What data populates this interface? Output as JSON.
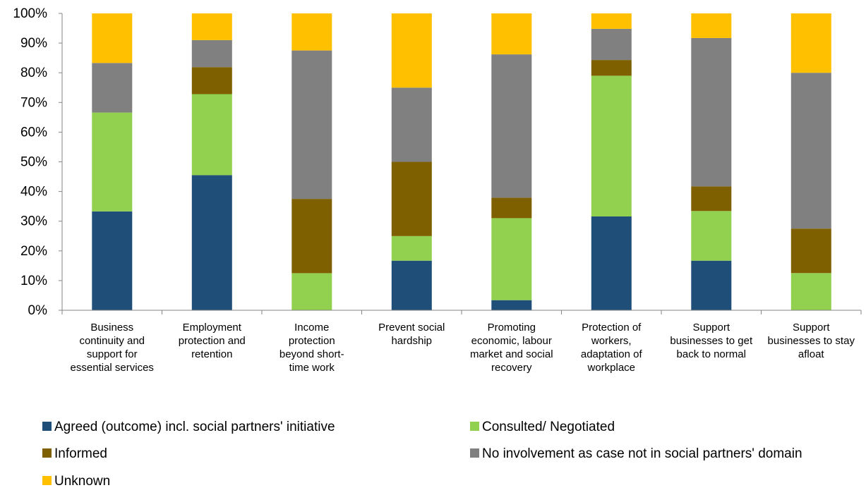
{
  "chart_data": {
    "type": "bar",
    "stacked": true,
    "percent_stacked": true,
    "categories": [
      [
        "Business",
        "continuity and",
        "support for",
        "essential services"
      ],
      [
        "Employment",
        "protection and",
        "retention"
      ],
      [
        "Income",
        "protection",
        "beyond short-",
        "time work"
      ],
      [
        "Prevent social",
        "hardship"
      ],
      [
        "Promoting",
        "economic, labour",
        "market and social",
        "recovery"
      ],
      [
        "Protection of",
        "workers,",
        "adaptation of",
        "workplace"
      ],
      [
        "Support",
        "businesses to get",
        "back to normal"
      ],
      [
        "Support",
        "businesses to stay",
        "afloat"
      ]
    ],
    "series": [
      {
        "name": "Agreed (outcome) incl. social partners' initiative",
        "color": "#1f4e79",
        "values": [
          33.3,
          45.5,
          0,
          16.7,
          3.4,
          31.6,
          16.7,
          0
        ]
      },
      {
        "name": "Consulted/ Negotiated",
        "color": "#92d050",
        "values": [
          33.3,
          27.3,
          12.5,
          8.3,
          27.6,
          47.4,
          16.7,
          12.5
        ]
      },
      {
        "name": "Informed",
        "color": "#7f6000",
        "values": [
          0,
          9.1,
          25.0,
          25.0,
          6.9,
          5.3,
          8.3,
          15.0
        ]
      },
      {
        "name": "No involvement as case not in social partners' domain",
        "color": "#808080",
        "values": [
          16.7,
          9.1,
          50.0,
          25.0,
          48.3,
          10.5,
          50.0,
          52.5
        ]
      },
      {
        "name": "Unknown",
        "color": "#ffc000",
        "values": [
          16.7,
          9.0,
          12.5,
          25.0,
          13.8,
          5.2,
          8.3,
          20.0
        ]
      }
    ],
    "yticks": [
      "0%",
      "10%",
      "20%",
      "30%",
      "40%",
      "50%",
      "60%",
      "70%",
      "80%",
      "90%",
      "100%"
    ],
    "ylim": [
      0,
      100
    ],
    "grid": false,
    "legend_position": "bottom"
  }
}
